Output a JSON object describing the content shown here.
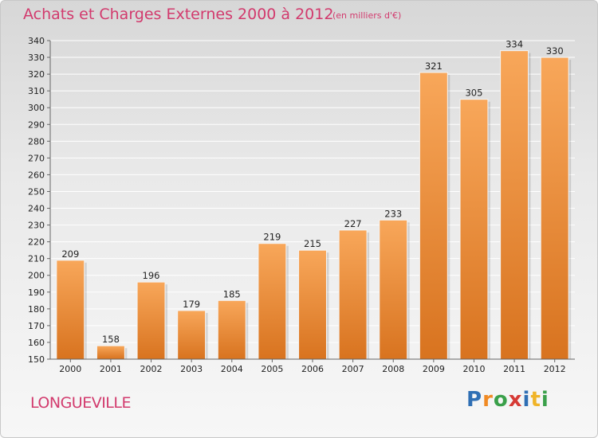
{
  "header": {
    "title": "Achats et Charges Externes 2000 à 2012",
    "subtitle": "(en milliers d'€)"
  },
  "footer": {
    "commune": "LONGUEVILLE",
    "logo_letters": [
      "P",
      "r",
      "o",
      "x",
      "i",
      "t",
      "i"
    ],
    "logo_colors": [
      "#2f6fb4",
      "#f08a24",
      "#3aa04a",
      "#d63a35",
      "#2f6fb4",
      "#f0b429",
      "#3aa04a"
    ]
  },
  "colors": {
    "bar_top": "#f8a75a",
    "bar_bottom": "#d8731f",
    "title": "#d23a6d",
    "grid": "#ffffff"
  },
  "chart_data": {
    "type": "bar",
    "categories": [
      "2000",
      "2001",
      "2002",
      "2003",
      "2004",
      "2005",
      "2006",
      "2007",
      "2008",
      "2009",
      "2010",
      "2011",
      "2012"
    ],
    "values": [
      209,
      158,
      196,
      179,
      185,
      219,
      215,
      227,
      233,
      321,
      305,
      334,
      330
    ],
    "ylim": [
      150,
      340
    ],
    "yticks": [
      150,
      160,
      170,
      180,
      190,
      200,
      210,
      220,
      230,
      240,
      250,
      260,
      270,
      280,
      290,
      300,
      310,
      320,
      330,
      340
    ],
    "grid": true
  }
}
